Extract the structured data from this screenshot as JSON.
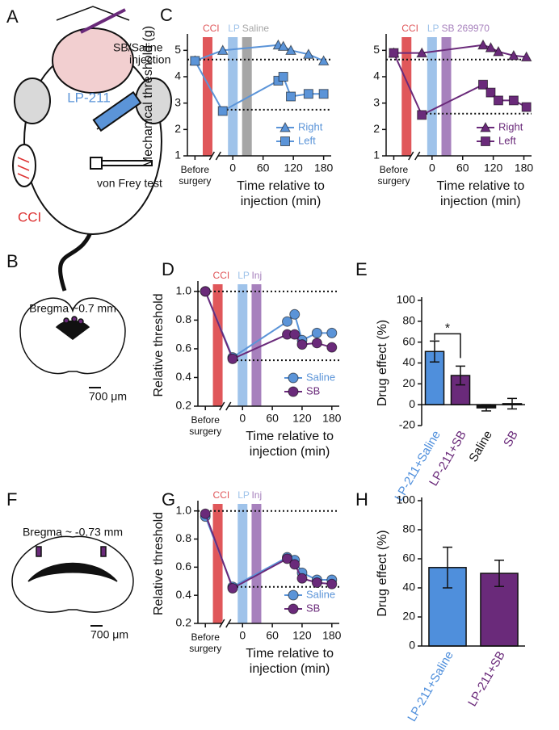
{
  "panels": [
    "A",
    "B",
    "C",
    "D",
    "E",
    "F",
    "G",
    "H"
  ],
  "figure_a": {
    "injection": [
      "SB/Saline",
      "injection"
    ],
    "drug": "LP-211",
    "lesion": "CCI",
    "test": "von Frey test"
  },
  "figure_b": {
    "bregma": "Bregma ~0.7 mm",
    "scale": "700 μm"
  },
  "figure_f": {
    "bregma": "Bregma ~ -0.73 mm",
    "scale": "700 μm"
  },
  "chart_data": [
    {
      "type": "line",
      "ylabel": "Mechanical threshold (g)",
      "xlabel": [
        "Time relative to",
        "injection (min)"
      ],
      "x": [
        -75,
        -20,
        90,
        100,
        115,
        150,
        180
      ],
      "xlim": [
        -90,
        195
      ],
      "xticks": [
        {
          "value": -75,
          "label": "Before surgery"
        },
        0,
        60,
        120,
        180
      ],
      "ylim": [
        1,
        5.5
      ],
      "yticks": [
        1,
        2,
        3,
        4,
        5
      ],
      "bands": [
        {
          "label": "CCI",
          "x": -50,
          "color": "#e0575a"
        },
        {
          "label": "LP",
          "x": 0,
          "color": "#9fc3ea"
        },
        {
          "label": "Saline",
          "x": 28,
          "color": "#a6a6a6"
        }
      ],
      "ref_lines": [
        4.65,
        2.75
      ],
      "legend": "lower right",
      "series": [
        {
          "name": "Right",
          "color": "#5b94d8",
          "marker": "triangle",
          "values": [
            4.6,
            5.0,
            5.2,
            5.15,
            5.0,
            4.85,
            4.6
          ]
        },
        {
          "name": "Left",
          "color": "#5b94d8",
          "marker": "square",
          "values": [
            4.6,
            2.7,
            3.85,
            4.0,
            3.25,
            3.35,
            3.35
          ]
        }
      ]
    },
    {
      "type": "line",
      "xlabel": [
        "Time relative to",
        "injection (min)"
      ],
      "x": [
        -75,
        -20,
        100,
        115,
        130,
        160,
        185
      ],
      "xlim": [
        -90,
        195
      ],
      "xticks": [
        {
          "value": -75,
          "label": "Before surgery"
        },
        0,
        60,
        120,
        180
      ],
      "ylim": [
        1,
        5.5
      ],
      "yticks": [
        1,
        2,
        3,
        4,
        5
      ],
      "bands": [
        {
          "label": "CCI",
          "x": -50,
          "color": "#e0575a"
        },
        {
          "label": "LP",
          "x": 0,
          "color": "#9fc3ea"
        },
        {
          "label": "SB 269970",
          "x": 28,
          "color": "#a781bd"
        }
      ],
      "ref_lines": [
        4.65,
        2.6
      ],
      "legend": "lower right",
      "series": [
        {
          "name": "Right",
          "color": "#6a2a7a",
          "marker": "triangle",
          "values": [
            4.9,
            4.9,
            5.2,
            5.1,
            4.95,
            4.8,
            4.75
          ]
        },
        {
          "name": "Left",
          "color": "#6a2a7a",
          "marker": "square",
          "values": [
            4.9,
            2.55,
            3.7,
            3.4,
            3.1,
            3.1,
            2.85
          ]
        }
      ]
    },
    {
      "type": "line",
      "ylabel": "Relative threshold",
      "xlabel": [
        "Time relative to",
        "injection (min)"
      ],
      "x": [
        -75,
        -20,
        90,
        105,
        120,
        150,
        180
      ],
      "xlim": [
        -90,
        195
      ],
      "xticks": [
        {
          "value": -75,
          "label": "Before surgery"
        },
        0,
        60,
        120,
        180
      ],
      "ylim": [
        0.2,
        1.05
      ],
      "yticks": [
        0.2,
        0.4,
        0.6,
        0.8,
        {
          "value": 1,
          "label": "1.0"
        }
      ],
      "bands": [
        {
          "label": "CCI",
          "x": -50,
          "color": "#e0575a"
        },
        {
          "label": "LP",
          "x": 0,
          "color": "#9fc3ea"
        },
        {
          "label": "Inj",
          "x": 28,
          "color": "#a781bd"
        }
      ],
      "ref_lines": [
        1.0,
        0.52
      ],
      "legend": "lower right",
      "series": [
        {
          "name": "Saline",
          "color": "#5b94d8",
          "marker": "circle",
          "values": [
            1.0,
            0.54,
            0.79,
            0.84,
            0.66,
            0.71,
            0.71
          ]
        },
        {
          "name": "SB",
          "color": "#6a2a7a",
          "marker": "circle",
          "values": [
            1.0,
            0.53,
            0.7,
            0.7,
            0.63,
            0.64,
            0.61
          ]
        }
      ]
    },
    {
      "type": "bar",
      "ylabel": "Drug effect (%)",
      "categories": [
        "LP-211+Saline",
        "LP-211+SB",
        "Saline",
        "SB"
      ],
      "values": [
        51,
        28,
        -3,
        1
      ],
      "errors": [
        10,
        9,
        3,
        5
      ],
      "colors": [
        "#4f8fdc",
        "#6a2a7a",
        "#111111",
        "#6a2a7a"
      ],
      "ylim": [
        -20,
        100
      ],
      "yticks": [
        -20,
        0,
        20,
        40,
        60,
        80,
        100
      ],
      "significance": {
        "label": "*",
        "y": 68
      }
    },
    {
      "type": "line",
      "ylabel": "Relative threshold",
      "xlabel": [
        "Time relative to",
        "injection (min)"
      ],
      "x": [
        -75,
        -20,
        90,
        105,
        120,
        150,
        180
      ],
      "xlim": [
        -90,
        195
      ],
      "xticks": [
        {
          "value": -75,
          "label": "Before surgery"
        },
        0,
        60,
        120,
        180
      ],
      "ylim": [
        0.2,
        1.05
      ],
      "yticks": [
        0.2,
        0.4,
        0.6,
        0.8,
        {
          "value": 1,
          "label": "1.0"
        }
      ],
      "bands": [
        {
          "label": "CCI",
          "x": -50,
          "color": "#e0575a"
        },
        {
          "label": "LP",
          "x": 0,
          "color": "#9fc3ea"
        },
        {
          "label": "Inj",
          "x": 28,
          "color": "#a781bd"
        }
      ],
      "ref_lines": [
        1.0,
        0.46
      ],
      "legend": "lower right",
      "series": [
        {
          "name": "Saline",
          "color": "#5b94d8",
          "marker": "circle",
          "values": [
            0.96,
            0.46,
            0.67,
            0.65,
            0.56,
            0.51,
            0.51
          ]
        },
        {
          "name": "SB",
          "color": "#6a2a7a",
          "marker": "circle",
          "values": [
            0.98,
            0.45,
            0.66,
            0.62,
            0.52,
            0.49,
            0.48
          ]
        }
      ]
    },
    {
      "type": "bar",
      "ylabel": "Drug effect (%)",
      "categories": [
        "LP-211+Saline",
        "LP-211+SB"
      ],
      "values": [
        54,
        50
      ],
      "errors": [
        14,
        9
      ],
      "colors": [
        "#4f8fdc",
        "#6a2a7a"
      ],
      "ylim": [
        0,
        100
      ],
      "yticks": [
        0,
        20,
        40,
        60,
        80,
        100
      ]
    }
  ]
}
